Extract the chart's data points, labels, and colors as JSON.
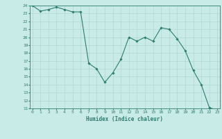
{
  "title": "",
  "xlabel": "Humidex (Indice chaleur)",
  "x_values": [
    0,
    1,
    2,
    3,
    4,
    5,
    6,
    7,
    8,
    9,
    10,
    11,
    12,
    13,
    14,
    15,
    16,
    17,
    18,
    19,
    20,
    21,
    22,
    23
  ],
  "y_values": [
    24,
    23.3,
    23.5,
    23.8,
    23.5,
    23.2,
    23.2,
    16.7,
    16.0,
    14.3,
    15.5,
    17.2,
    20.0,
    19.5,
    20.0,
    19.5,
    21.2,
    21.0,
    19.8,
    18.3,
    15.8,
    14.0,
    11.1,
    10.8
  ],
  "ylim": [
    11,
    24
  ],
  "xlim": [
    -0.3,
    23.3
  ],
  "line_color": "#2e7d6e",
  "marker_color": "#2e7d6e",
  "bg_color": "#c8ebe8",
  "grid_color": "#b0d8d4",
  "tick_label_color": "#2e7d6e",
  "axis_label_color": "#2e7d6e",
  "yticks": [
    11,
    12,
    13,
    14,
    15,
    16,
    17,
    18,
    19,
    20,
    21,
    22,
    23,
    24
  ],
  "xticks": [
    0,
    1,
    2,
    3,
    4,
    5,
    6,
    7,
    8,
    9,
    10,
    11,
    12,
    13,
    14,
    15,
    16,
    17,
    18,
    19,
    20,
    21,
    22,
    23
  ]
}
